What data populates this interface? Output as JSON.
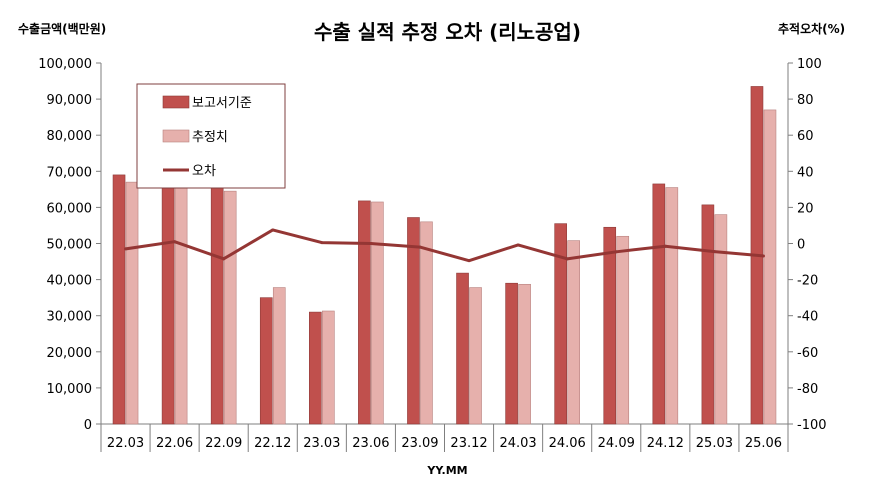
{
  "chart_data": {
    "type": "bar",
    "title": "수출 실적 추정 오차 (리노공업)",
    "ylabel_left": "수출금액(백만원)",
    "ylabel_right": "추적오차(%)",
    "xlabel": "YY.MM",
    "categories": [
      "22.03",
      "22.06",
      "22.09",
      "22.12",
      "23.03",
      "23.06",
      "23.09",
      "23.12",
      "24.03",
      "24.06",
      "24.09",
      "24.12",
      "25.03",
      "25.06"
    ],
    "series": [
      {
        "name": "보고서기준",
        "type": "bar",
        "axis": "left",
        "color": "#C0504D",
        "values": [
          69000,
          73000,
          66000,
          35000,
          31000,
          61800,
          57200,
          41800,
          39000,
          55500,
          54500,
          66500,
          60700,
          93500
        ]
      },
      {
        "name": "추정치",
        "type": "bar",
        "axis": "left",
        "color": "#E6B0AC",
        "values": [
          67000,
          73500,
          64500,
          37800,
          31300,
          61500,
          56000,
          37800,
          38700,
          50800,
          52000,
          65500,
          58000,
          87000
        ]
      },
      {
        "name": "오차",
        "type": "line",
        "axis": "right",
        "color": "#943634",
        "values": [
          -3,
          1,
          -8.5,
          7.5,
          0.5,
          0,
          -2,
          -9.5,
          -0.8,
          -8.5,
          -4.6,
          -1.5,
          -4.5,
          -6.9
        ]
      }
    ],
    "ylim_left": [
      0,
      100000
    ],
    "ylim_right": [
      -100,
      100
    ],
    "yticks_left": [
      "0",
      "10,000",
      "20,000",
      "30,000",
      "40,000",
      "50,000",
      "60,000",
      "70,000",
      "80,000",
      "90,000",
      "100,000"
    ],
    "yticks_right": [
      "-100",
      "-80",
      "-60",
      "-40",
      "-20",
      "0",
      "20",
      "40",
      "60",
      "80",
      "100"
    ],
    "grid": false,
    "legend_position": "top-left"
  }
}
